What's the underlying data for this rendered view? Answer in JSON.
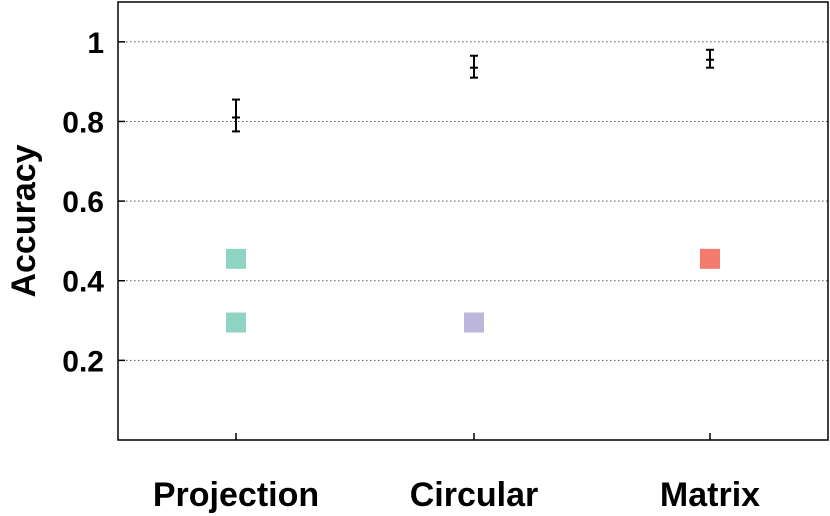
{
  "chart_data": {
    "type": "scatter",
    "title": "",
    "xlabel": "",
    "ylabel": "Accuracy",
    "categories": [
      "Projection",
      "Circular",
      "Matrix"
    ],
    "ylim": [
      0,
      1.1
    ],
    "yticks": [
      0.2,
      0.4,
      0.6,
      0.8,
      1
    ],
    "ytick_labels": [
      "0.2",
      "0.4",
      "0.6",
      "0.8",
      "1"
    ],
    "grid": "horizontal-dotted",
    "errorbars": [
      {
        "category": "Projection",
        "mean": 0.81,
        "low": 0.775,
        "high": 0.855
      },
      {
        "category": "Circular",
        "mean": 0.935,
        "low": 0.91,
        "high": 0.965
      },
      {
        "category": "Matrix",
        "mean": 0.955,
        "low": 0.935,
        "high": 0.98
      }
    ],
    "markers": [
      {
        "category": "Projection",
        "y": 0.455,
        "color": "#8fd3c3"
      },
      {
        "category": "Projection",
        "y": 0.295,
        "color": "#8fd3c3"
      },
      {
        "category": "Circular",
        "y": 0.295,
        "color": "#bcb6da"
      },
      {
        "category": "Matrix",
        "y": 0.455,
        "color": "#f47b6e"
      }
    ]
  }
}
